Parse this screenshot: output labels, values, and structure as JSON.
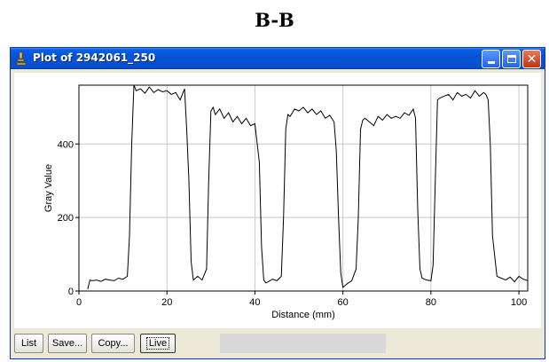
{
  "caption": "B-B",
  "window": {
    "title": "Plot of 2942061_250",
    "icon": "microscope-icon",
    "controls": [
      "minimize-icon",
      "maximize-icon",
      "close-icon"
    ]
  },
  "buttons": {
    "list": "List",
    "save": "Save...",
    "copy": "Copy...",
    "live": "Live"
  },
  "status_text": "",
  "colors": {
    "titlebar": "#0453d6",
    "window_bg": "#ece9d8",
    "plot_line": "#000000",
    "grid": "#c8c8c8"
  },
  "chart_data": {
    "type": "line",
    "xlabel": "Distance (mm)",
    "ylabel": "Gray Value",
    "xlim": [
      0,
      102
    ],
    "ylim": [
      0,
      560
    ],
    "xticks": [
      0,
      20,
      40,
      60,
      80,
      100
    ],
    "yticks": [
      0,
      200,
      400
    ],
    "grid": true,
    "series": [
      {
        "x": [
          2,
          2.5,
          3,
          4,
          5,
          6,
          7,
          8,
          9,
          10,
          11,
          11.5,
          12,
          12.5,
          13,
          14,
          15,
          16,
          17,
          18,
          19,
          20,
          21,
          22,
          23,
          24,
          24.5,
          25,
          25.5,
          26,
          27,
          28,
          29,
          29.5,
          30,
          30.5,
          31,
          32,
          33,
          34,
          35,
          36,
          37,
          38,
          39,
          40,
          41,
          41.5,
          42,
          42.5,
          43,
          44,
          45,
          46,
          46.5,
          47,
          47.5,
          48,
          49,
          50,
          51,
          52,
          53,
          54,
          55,
          56,
          57,
          58,
          58.5,
          59,
          59.5,
          60,
          61,
          62,
          63,
          63.5,
          64,
          64.5,
          65,
          66,
          67,
          68,
          69,
          70,
          71,
          72,
          73,
          74,
          75,
          76,
          76.5,
          77,
          77.5,
          78,
          79,
          80,
          80.5,
          81,
          81.5,
          82,
          83,
          84,
          85,
          86,
          87,
          88,
          89,
          90,
          91,
          92,
          92.5,
          93,
          93.5,
          94,
          95,
          96,
          97,
          98,
          99,
          100,
          101,
          102
        ],
        "y": [
          5,
          30,
          28,
          30,
          26,
          32,
          30,
          28,
          35,
          32,
          40,
          150,
          400,
          560,
          545,
          550,
          538,
          555,
          540,
          548,
          542,
          545,
          535,
          540,
          520,
          550,
          440,
          300,
          80,
          30,
          40,
          30,
          60,
          300,
          490,
          500,
          480,
          495,
          470,
          485,
          460,
          475,
          455,
          470,
          450,
          455,
          350,
          120,
          30,
          22,
          25,
          32,
          28,
          40,
          200,
          440,
          480,
          475,
          495,
          490,
          500,
          485,
          495,
          480,
          490,
          470,
          478,
          460,
          380,
          200,
          50,
          10,
          20,
          28,
          60,
          200,
          440,
          465,
          470,
          460,
          450,
          475,
          465,
          480,
          470,
          475,
          470,
          485,
          478,
          495,
          470,
          220,
          60,
          35,
          30,
          28,
          70,
          300,
          520,
          525,
          530,
          535,
          520,
          540,
          530,
          535,
          525,
          545,
          530,
          540,
          535,
          520,
          400,
          150,
          40,
          35,
          30,
          38,
          25,
          40,
          32,
          28
        ]
      }
    ]
  }
}
